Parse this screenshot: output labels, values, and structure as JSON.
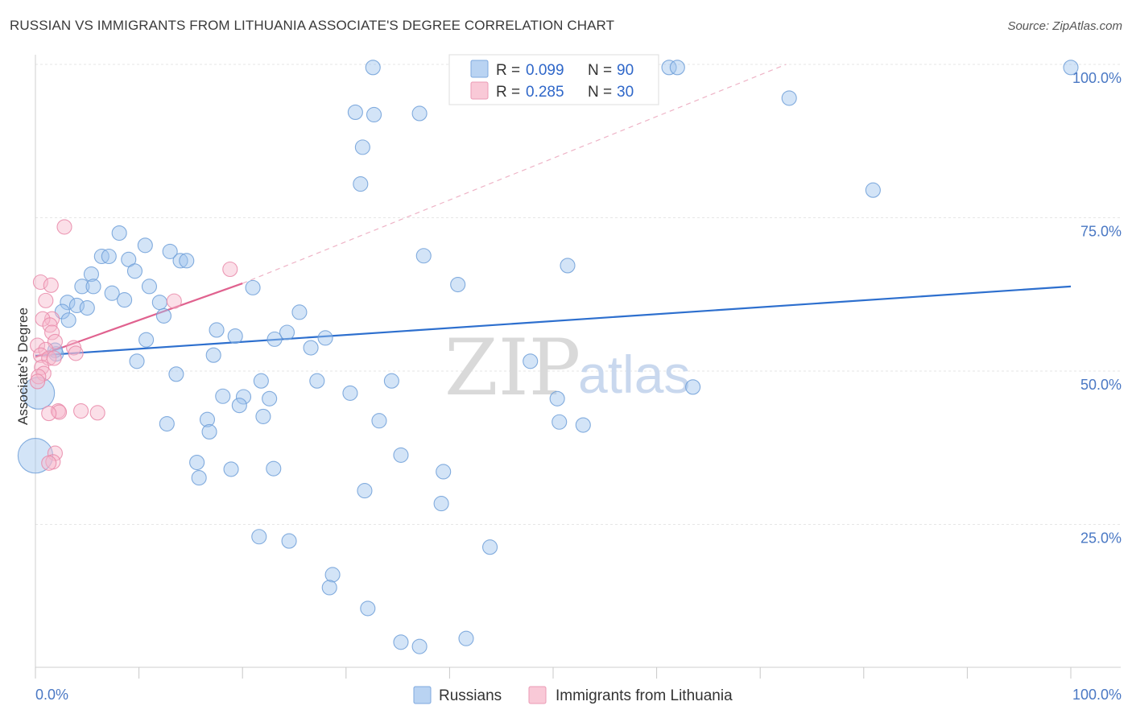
{
  "title": "RUSSIAN VS IMMIGRANTS FROM LITHUANIA ASSOCIATE'S DEGREE CORRELATION CHART",
  "source": "Source: ZipAtlas.com",
  "watermark": {
    "zip": "ZIP",
    "atlas": "atlas"
  },
  "colors": {
    "blue": "#9dc3ee",
    "blue_stroke": "#6f9fd8",
    "blue_line": "#2d6fce",
    "pink": "#f6b8cb",
    "pink_stroke": "#e98aa9",
    "pink_line": "#e0628f",
    "grid": "#e6e6e6"
  },
  "legend": {
    "r_label": "R =",
    "n_label": "N =",
    "rows": [
      {
        "series": "Russians",
        "r": "0.099",
        "n": "90"
      },
      {
        "series": "Immigrants from Lithuania",
        "r": "0.285",
        "n": "30"
      }
    ]
  },
  "chart_data": {
    "type": "scatter",
    "xlabel": "",
    "ylabel": "Associate's Degree",
    "xlim": [
      0,
      100
    ],
    "ylim": [
      0,
      100
    ],
    "x_tick_labels": [
      "0.0%",
      "100.0%"
    ],
    "y_tick_labels": [
      "100.0%",
      "75.0%",
      "50.0%",
      "25.0%"
    ],
    "y_tick_values": [
      100,
      75,
      50,
      25
    ],
    "series": [
      {
        "name": "Russians",
        "trend": {
          "x": [
            0,
            100
          ],
          "y": [
            52.5,
            63.8
          ]
        },
        "points": [
          [
            32.6,
            99.5,
            1
          ],
          [
            61.2,
            99.5,
            1
          ],
          [
            62.0,
            99.5,
            1
          ],
          [
            100,
            99.5,
            1
          ],
          [
            30.9,
            92.2,
            1
          ],
          [
            32.7,
            91.8,
            1
          ],
          [
            37.1,
            92.0,
            1
          ],
          [
            72.8,
            94.5,
            1
          ],
          [
            31.6,
            86.5,
            1
          ],
          [
            31.4,
            80.5,
            1
          ],
          [
            80.9,
            79.5,
            1
          ],
          [
            8.1,
            72.5,
            1
          ],
          [
            10.6,
            70.5,
            1
          ],
          [
            6.4,
            68.7,
            1
          ],
          [
            7.1,
            68.7,
            1
          ],
          [
            9.0,
            68.2,
            1
          ],
          [
            13.0,
            69.5,
            1
          ],
          [
            14.0,
            68.0,
            1
          ],
          [
            14.6,
            68.0,
            1
          ],
          [
            37.5,
            68.8,
            1
          ],
          [
            51.4,
            67.2,
            1
          ],
          [
            5.4,
            65.8,
            1
          ],
          [
            9.6,
            66.3,
            1
          ],
          [
            4.5,
            63.8,
            1
          ],
          [
            5.6,
            63.8,
            1
          ],
          [
            7.4,
            62.7,
            1
          ],
          [
            40.8,
            64.1,
            1
          ],
          [
            21.0,
            63.6,
            1
          ],
          [
            11.0,
            63.8,
            1
          ],
          [
            8.6,
            61.6,
            1
          ],
          [
            12.0,
            61.2,
            1
          ],
          [
            3.1,
            61.2,
            1
          ],
          [
            4.0,
            60.7,
            1
          ],
          [
            5.0,
            60.3,
            1
          ],
          [
            2.6,
            59.7,
            1
          ],
          [
            3.2,
            58.3,
            1
          ],
          [
            12.4,
            59.0,
            1
          ],
          [
            25.5,
            59.6,
            1
          ],
          [
            17.5,
            56.7,
            1
          ],
          [
            24.3,
            56.3,
            1
          ],
          [
            19.3,
            55.7,
            1
          ],
          [
            10.7,
            55.1,
            1
          ],
          [
            23.1,
            55.2,
            1
          ],
          [
            28.0,
            55.4,
            1
          ],
          [
            26.6,
            53.8,
            1
          ],
          [
            2.0,
            52.8,
            1
          ],
          [
            1.9,
            53.4,
            1
          ],
          [
            17.2,
            52.6,
            1
          ],
          [
            9.8,
            51.6,
            1
          ],
          [
            47.8,
            51.6,
            1
          ],
          [
            13.6,
            49.5,
            1
          ],
          [
            21.8,
            48.4,
            1
          ],
          [
            34.4,
            48.4,
            1
          ],
          [
            27.2,
            48.4,
            1
          ],
          [
            63.5,
            47.4,
            1
          ],
          [
            30.4,
            46.4,
            1
          ],
          [
            18.1,
            45.9,
            1
          ],
          [
            20.1,
            45.8,
            1
          ],
          [
            22.6,
            45.5,
            1
          ],
          [
            50.4,
            45.5,
            1
          ],
          [
            19.7,
            44.4,
            1
          ],
          [
            0.3,
            46.4,
            2.2
          ],
          [
            12.7,
            41.4,
            1
          ],
          [
            16.6,
            42.1,
            1
          ],
          [
            22.0,
            42.6,
            1
          ],
          [
            33.2,
            41.9,
            1
          ],
          [
            50.6,
            41.7,
            1
          ],
          [
            52.9,
            41.2,
            1
          ],
          [
            16.8,
            40.1,
            1
          ],
          [
            35.3,
            36.3,
            1
          ],
          [
            15.6,
            35.1,
            1
          ],
          [
            18.9,
            34.0,
            1
          ],
          [
            23.0,
            34.1,
            1
          ],
          [
            0.0,
            36.2,
            2.4
          ],
          [
            39.4,
            33.6,
            1
          ],
          [
            15.8,
            32.6,
            1
          ],
          [
            31.8,
            30.5,
            1
          ],
          [
            39.2,
            28.4,
            1
          ],
          [
            21.6,
            23.0,
            1
          ],
          [
            24.5,
            22.3,
            1
          ],
          [
            43.9,
            21.3,
            1
          ],
          [
            28.7,
            16.8,
            1
          ],
          [
            28.4,
            14.7,
            1
          ],
          [
            32.1,
            11.3,
            1
          ],
          [
            35.3,
            5.8,
            1
          ],
          [
            37.1,
            5.1,
            1
          ],
          [
            41.6,
            6.4,
            1
          ]
        ]
      },
      {
        "name": "Immigrants from Lithuania",
        "trend": {
          "x": [
            0,
            20
          ],
          "y": [
            52.3,
            64.3
          ]
        },
        "trend_extended": {
          "x": [
            20,
            72.5
          ],
          "y": [
            64.3,
            100
          ]
        },
        "points": [
          [
            2.8,
            73.5,
            1
          ],
          [
            18.8,
            66.6,
            1
          ],
          [
            0.5,
            64.5,
            1
          ],
          [
            1.5,
            64.0,
            1
          ],
          [
            1.0,
            61.5,
            1
          ],
          [
            13.4,
            61.4,
            1
          ],
          [
            1.6,
            58.5,
            1
          ],
          [
            0.7,
            58.5,
            1
          ],
          [
            1.4,
            57.5,
            1
          ],
          [
            1.6,
            56.3,
            1
          ],
          [
            1.9,
            54.8,
            1
          ],
          [
            3.7,
            53.8,
            1
          ],
          [
            0.2,
            54.2,
            1
          ],
          [
            1.0,
            53.5,
            1
          ],
          [
            3.9,
            52.9,
            1
          ],
          [
            0.5,
            52.6,
            1
          ],
          [
            1.3,
            52.1,
            1
          ],
          [
            1.8,
            52.1,
            1
          ],
          [
            0.6,
            50.6,
            1
          ],
          [
            0.8,
            49.6,
            1
          ],
          [
            0.3,
            49.1,
            1
          ],
          [
            0.2,
            48.3,
            1
          ],
          [
            4.4,
            43.5,
            1
          ],
          [
            2.2,
            43.5,
            1
          ],
          [
            2.3,
            43.3,
            1
          ],
          [
            1.3,
            43.1,
            1
          ],
          [
            6.0,
            43.2,
            1
          ],
          [
            1.9,
            36.6,
            1
          ],
          [
            1.7,
            35.2,
            1
          ],
          [
            1.3,
            35.0,
            1
          ]
        ]
      }
    ]
  }
}
